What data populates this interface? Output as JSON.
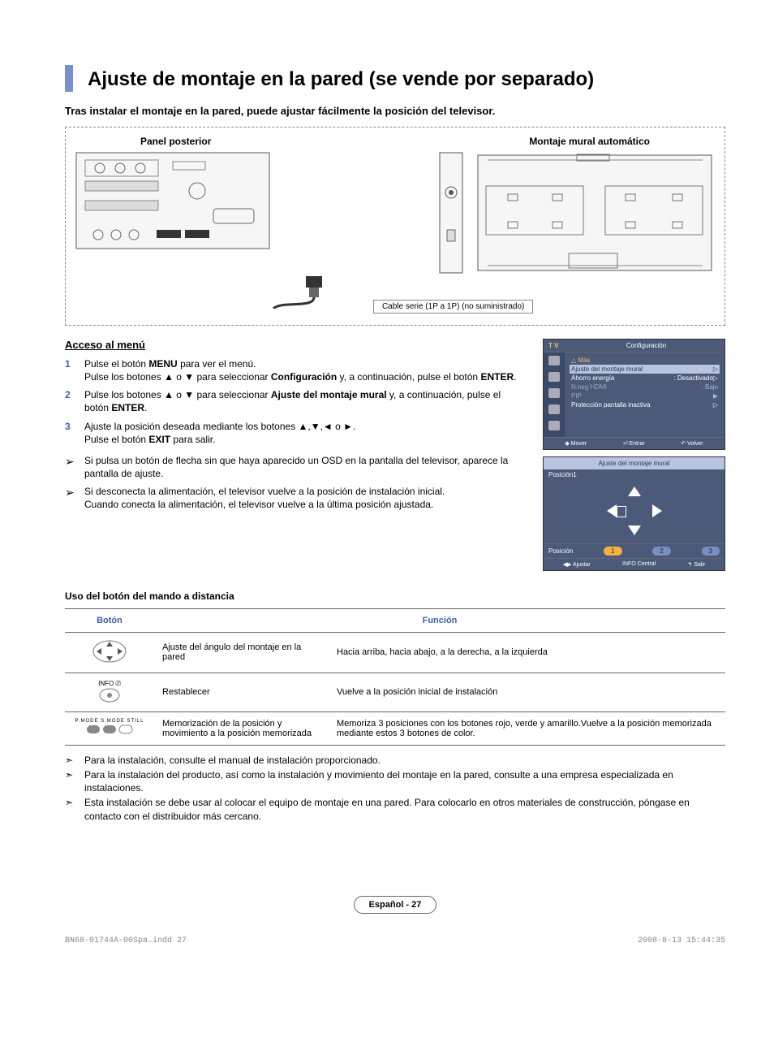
{
  "title": "Ajuste de montaje en la pared (se vende por separado)",
  "intro": "Tras instalar el montaje en la pared, puede ajustar fácilmente la posición del televisor.",
  "diagram": {
    "left_label": "Panel posterior",
    "right_label": "Montaje mural automático",
    "cable": "Cable serie (1P a 1P) (no suministrado)"
  },
  "menu_access": {
    "heading": "Acceso al menú",
    "steps": [
      "Pulse el botón <b>MENU</b> para ver el menú.<br>Pulse los botones ▲ o ▼ para seleccionar <b>Configuración</b> y, a continuación, pulse el botón <b>ENTER</b>.",
      "Pulse los botones ▲ o ▼ para seleccionar <b>Ajuste del montaje mural</b> y, a continuación, pulse el botón <b>ENTER</b>.",
      "Ajuste la posición deseada mediante los botones ▲,▼,◄ o ►.<br>Pulse el botón <b>EXIT</b> para salir."
    ],
    "notes": [
      "Si pulsa un botón de flecha sin que haya aparecido un OSD en la pantalla del televisor, aparece la pantalla de ajuste.",
      "Si desconecta la alimentación, el televisor vuelve a la posición de instalación inicial.<br>Cuando conecta la alimentación, el televisor vuelve a la última posición ajustada."
    ]
  },
  "osd": {
    "tv": "T V",
    "title": "Configuración",
    "more": "△  Más",
    "items": [
      {
        "label": "Ajuste del montaje mural",
        "val": "▷",
        "sel": true
      },
      {
        "label": "Ahorro energía",
        "val": ": Desactivado▷"
      },
      {
        "label": "N.neg HDMI",
        "val": ": Bajo",
        "dim": true
      },
      {
        "label": "PIP",
        "val": "▶",
        "dim": true
      },
      {
        "label": "Protección pantalla inactiva",
        "val": "▷"
      }
    ],
    "foot": [
      "◆ Mover",
      "⏎ Entrar",
      "↶ Volver"
    ]
  },
  "osd_adjust": {
    "title": "Ajuste del montaje mural",
    "pos1": "Posición1",
    "pos_label": "Posición",
    "positions": [
      "1",
      "2",
      "3"
    ],
    "foot": [
      "◀▶ Ajustar",
      "INFO Central",
      "↰ Salir"
    ]
  },
  "remote": {
    "heading": "Uso del botón del mando a distancia",
    "th": [
      "Botón",
      "Función"
    ],
    "rows": [
      {
        "icon": "dpad",
        "action": "Ajuste del ángulo del montaje en la pared",
        "func": "Hacia arriba, hacia abajo, a la derecha, a la izquierda"
      },
      {
        "icon": "info",
        "action": "Restablecer",
        "func": "Vuelve a la posición inicial de instalación"
      },
      {
        "icon": "color",
        "action": "Memorización de la posición y movimiento a la posición memorizada",
        "func": "Memoriza 3 posiciones con los botones rojo, verde y amarillo.Vuelve a la posición memorizada mediante estos 3 botones de color."
      }
    ]
  },
  "footer_notes": [
    "Para la instalación, consulte el manual de instalación proporcionado.",
    "Para la instalación del producto, así como la instalación y movimiento del montaje en la pared, consulte a una empresa especializada en instalaciones.",
    "Esta instalación se debe usar al colocar el equipo de montaje en una pared. Para colocarlo en otros materiales de construcción, póngase en contacto con el distribuidor más cercano."
  ],
  "page_label": "Español - 27",
  "doc_meta": {
    "file": "BN68-01744A-00Spa.indd   27",
    "ts": "2008-8-13   15:44:35"
  },
  "colors": {
    "accent": "#7890d0",
    "osd_bg": "#4a5a78",
    "osd_sel": "#b8c4e0",
    "osd_gold": "#f5c060",
    "step_num": "#4060b0"
  }
}
